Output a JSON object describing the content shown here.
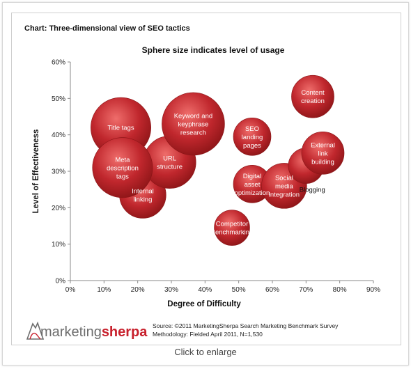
{
  "chart_title": "Chart: Three-dimensional view of SEO tactics",
  "caption": "Click to enlarge",
  "source": {
    "line1": "Source: ©2011 MarketingSherpa Search Marketing Benchmark Survey",
    "line2": "Methodology: Fielded April 2011, N=1,530"
  },
  "logo": {
    "part1": "marketing",
    "part2": "sherpa"
  },
  "colors": {
    "bubble": "#c0272d",
    "bubble_light": "#ef6d6b",
    "bubble_dark": "#8a1416",
    "logo_gray": "#6d6d6d",
    "logo_red": "#c8202c"
  },
  "chart_data": {
    "type": "bubble",
    "title": "Sphere size indicates level of usage",
    "xlabel": "Degree of Difficulty",
    "ylabel": "Level of Effectiveness",
    "xlim": [
      0,
      90
    ],
    "ylim": [
      0,
      60
    ],
    "xticks": [
      0,
      10,
      20,
      30,
      40,
      50,
      60,
      70,
      80,
      90
    ],
    "yticks": [
      0,
      10,
      20,
      30,
      40,
      50,
      60
    ],
    "xtick_labels": [
      "0%",
      "10%",
      "20%",
      "30%",
      "40%",
      "50%",
      "60%",
      "70%",
      "80%",
      "90%"
    ],
    "ytick_labels": [
      "0%",
      "10%",
      "20%",
      "30%",
      "40%",
      "50%",
      "60%"
    ],
    "grid": false,
    "points": [
      {
        "label": "Internal linking",
        "x": 21.5,
        "y": 23.5,
        "size": 55
      },
      {
        "label": "URL structure",
        "x": 29.5,
        "y": 32.5,
        "size": 70
      },
      {
        "label": "Keyword and keyphrase research",
        "x": 36.5,
        "y": 43,
        "size": 100
      },
      {
        "label": "Title tags",
        "x": 15,
        "y": 42,
        "size": 92
      },
      {
        "label": "Meta description tags",
        "x": 15.5,
        "y": 31,
        "size": 92
      },
      {
        "label": "Competitor Benchmarking",
        "x": 48,
        "y": 14.5,
        "size": 32
      },
      {
        "label": "SEO landing pages",
        "x": 54,
        "y": 39.5,
        "size": 36
      },
      {
        "label": "Digital asset optimization",
        "x": 54,
        "y": 26.5,
        "size": 36
      },
      {
        "label": "Social media integration",
        "x": 63.5,
        "y": 26,
        "size": 52
      },
      {
        "label": "Blogging",
        "x": 70,
        "y": 31.5,
        "size": 32,
        "label_outside": true
      },
      {
        "label": "External link building",
        "x": 75,
        "y": 35,
        "size": 46
      },
      {
        "label": "Content creation",
        "x": 72,
        "y": 50.5,
        "size": 46
      }
    ]
  }
}
